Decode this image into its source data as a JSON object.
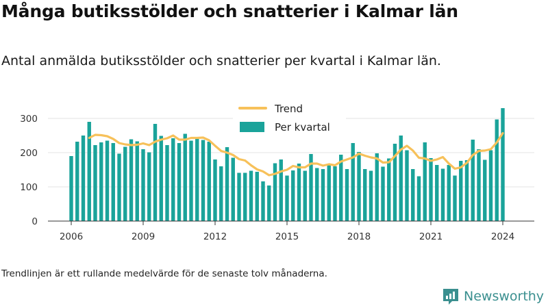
{
  "title": "Många butiksstölder och snatterier i Kalmar län",
  "subtitle": "Antal anmälda butiksstölder och snatterier per kvartal i Kalmar län.",
  "note": "Trendlinjen är ett rullande medelvärde för de senaste tolv månaderna.",
  "brand": {
    "name": "Newsworthy",
    "icon": "newsworthy-logo-icon",
    "color": "#3a8f8f"
  },
  "colors": {
    "bar": "#1aa39a",
    "trend": "#f7c15a",
    "grid": "#e3e3e3"
  },
  "chart_data": {
    "type": "bar",
    "x_start": "2006 Q1",
    "x_ticks": [
      "2006",
      "2009",
      "2012",
      "2015",
      "2018",
      "2021",
      "2024"
    ],
    "y_ticks": [
      0,
      100,
      200,
      300
    ],
    "ylim": [
      0,
      340
    ],
    "grid": true,
    "legend_position": "top-center",
    "series": [
      {
        "name": "Per kvartal",
        "kind": "bar",
        "values": [
          190,
          232,
          250,
          290,
          222,
          230,
          235,
          228,
          197,
          217,
          239,
          233,
          210,
          201,
          284,
          249,
          222,
          242,
          228,
          255,
          235,
          242,
          237,
          232,
          180,
          160,
          216,
          185,
          141,
          141,
          147,
          144,
          116,
          104,
          169,
          180,
          133,
          148,
          168,
          147,
          196,
          155,
          152,
          163,
          160,
          194,
          152,
          228,
          202,
          152,
          147,
          198,
          159,
          183,
          226,
          250,
          207,
          152,
          131,
          230,
          184,
          164,
          153,
          164,
          133,
          176,
          178,
          238,
          210,
          179,
          207,
          297,
          330
        ]
      },
      {
        "name": "Trend",
        "kind": "line",
        "values": [
          null,
          null,
          null,
          243,
          252,
          251,
          248,
          240,
          228,
          224,
          222,
          223,
          227,
          222,
          232,
          238,
          242,
          250,
          238,
          238,
          243,
          243,
          244,
          236,
          220,
          205,
          200,
          193,
          181,
          177,
          163,
          151,
          145,
          134,
          138,
          145,
          150,
          161,
          157,
          157,
          168,
          168,
          162,
          166,
          163,
          174,
          180,
          186,
          197,
          191,
          186,
          183,
          171,
          172,
          190,
          209,
          220,
          206,
          185,
          183,
          176,
          180,
          187,
          168,
          153,
          157,
          170,
          193,
          205,
          206,
          210,
          230,
          257
        ]
      }
    ]
  }
}
